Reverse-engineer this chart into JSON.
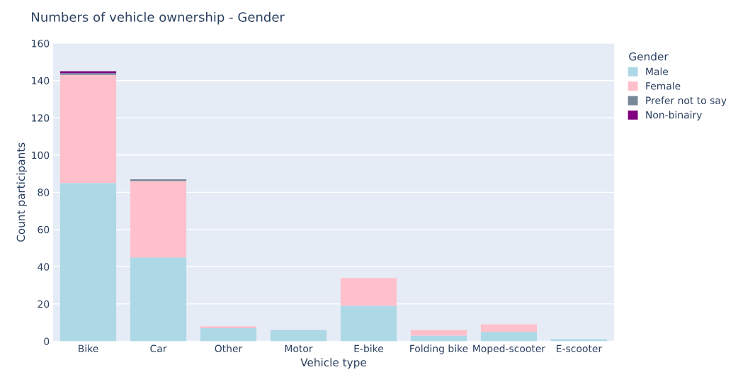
{
  "chart_data": {
    "type": "bar",
    "title": "Numbers of vehicle ownership - Gender",
    "xlabel": "Vehicle type",
    "ylabel": "Count participants",
    "legend_title": "Gender",
    "categories": [
      "Bike",
      "Car",
      "Other",
      "Motor",
      "E-bike",
      "Folding bike",
      "Moped-scooter",
      "E-scooter"
    ],
    "stacked": true,
    "series": [
      {
        "name": "Male",
        "color": "#add8e6",
        "values": [
          85,
          45,
          7,
          6,
          19,
          3,
          5,
          1
        ]
      },
      {
        "name": "Female",
        "color": "#ffc0cb",
        "values": [
          58,
          41,
          1,
          0,
          15,
          3,
          4,
          0
        ]
      },
      {
        "name": "Prefer not to say",
        "color": "#778899",
        "values": [
          1,
          1,
          0,
          0,
          0,
          0,
          0,
          0
        ]
      },
      {
        "name": "Non-binairy",
        "color": "#800080",
        "values": [
          1,
          0,
          0,
          0,
          0,
          0,
          0,
          0
        ]
      }
    ],
    "ylim": [
      0,
      160
    ],
    "yticks": [
      0,
      20,
      40,
      60,
      80,
      100,
      120,
      140,
      160
    ],
    "grid": "y",
    "legend": "top right outside"
  }
}
